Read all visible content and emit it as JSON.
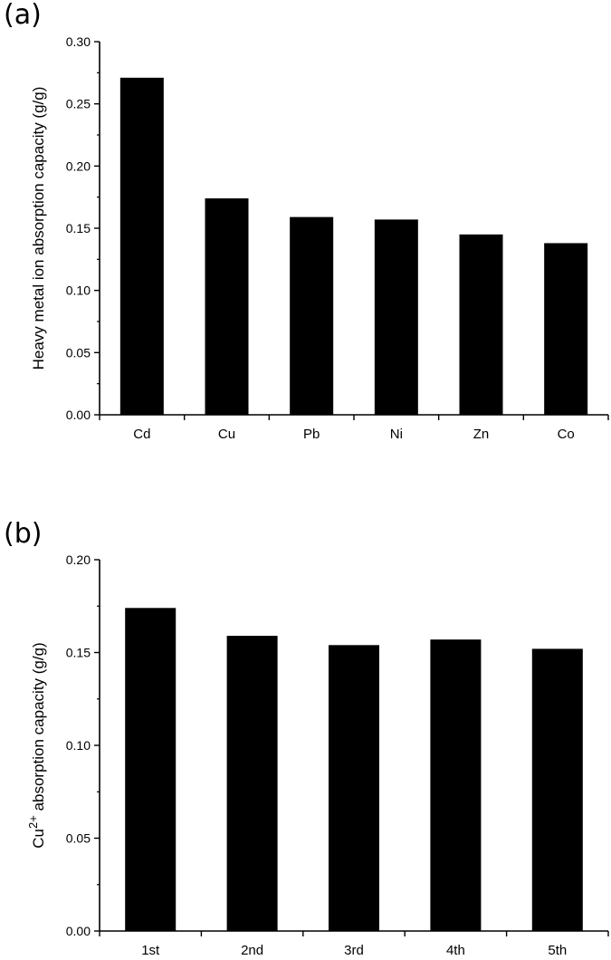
{
  "chart_data": [
    {
      "panel_label": "(a)",
      "type": "bar",
      "categories": [
        "Cd",
        "Cu",
        "Pb",
        "Ni",
        "Zn",
        "Co"
      ],
      "values": [
        0.271,
        0.174,
        0.159,
        0.157,
        0.145,
        0.138
      ],
      "ylabel": "Heavy metal ion absorption capacity (g/g)",
      "xlabel": "",
      "ylim": [
        0,
        0.3
      ],
      "yticks": [
        "0.00",
        "0.05",
        "0.10",
        "0.15",
        "0.20",
        "0.25",
        "0.30"
      ],
      "bar_color": "#000000",
      "grid": false
    },
    {
      "panel_label": "(b)",
      "type": "bar",
      "categories": [
        "1st",
        "2nd",
        "3rd",
        "4th",
        "5th"
      ],
      "values": [
        0.174,
        0.159,
        0.154,
        0.157,
        0.152
      ],
      "ylabel_parts": [
        "Cu",
        "2+",
        " absorption capacity (g/g)"
      ],
      "xlabel": "",
      "ylim": [
        0,
        0.2
      ],
      "yticks": [
        "0.00",
        "0.05",
        "0.10",
        "0.15",
        "0.20"
      ],
      "bar_color": "#000000",
      "grid": false
    }
  ]
}
